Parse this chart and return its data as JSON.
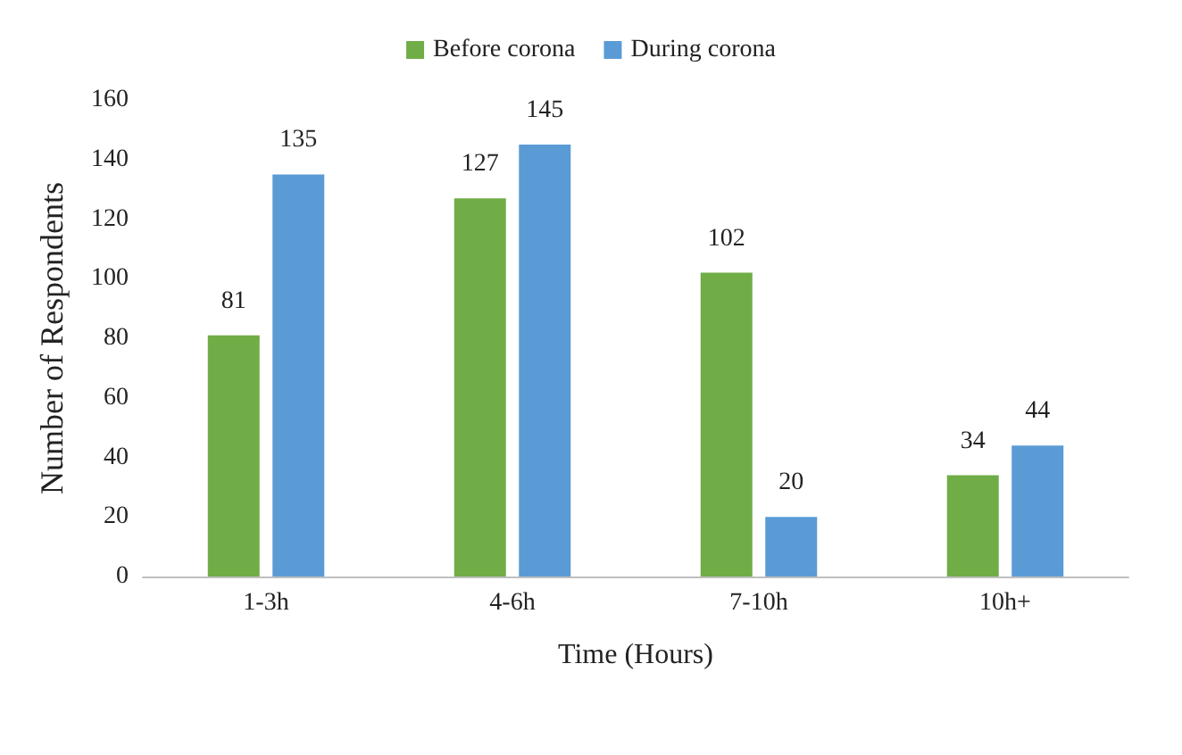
{
  "chart_data": {
    "type": "bar",
    "xlabel": "Time (Hours)",
    "ylabel": "Number of Respondents",
    "categories": [
      "1-3h",
      "4-6h",
      "7-10h",
      "10h+"
    ],
    "series": [
      {
        "name": "Before corona",
        "color": "#70ad47",
        "values": [
          81,
          127,
          102,
          34
        ]
      },
      {
        "name": "During corona",
        "color": "#5b9bd5",
        "values": [
          135,
          145,
          20,
          44
        ]
      }
    ],
    "ylim": [
      0,
      160
    ],
    "yticks": [
      0,
      20,
      40,
      60,
      80,
      100,
      120,
      140,
      160
    ],
    "grid": false,
    "legend": "top",
    "data_labels": true
  }
}
